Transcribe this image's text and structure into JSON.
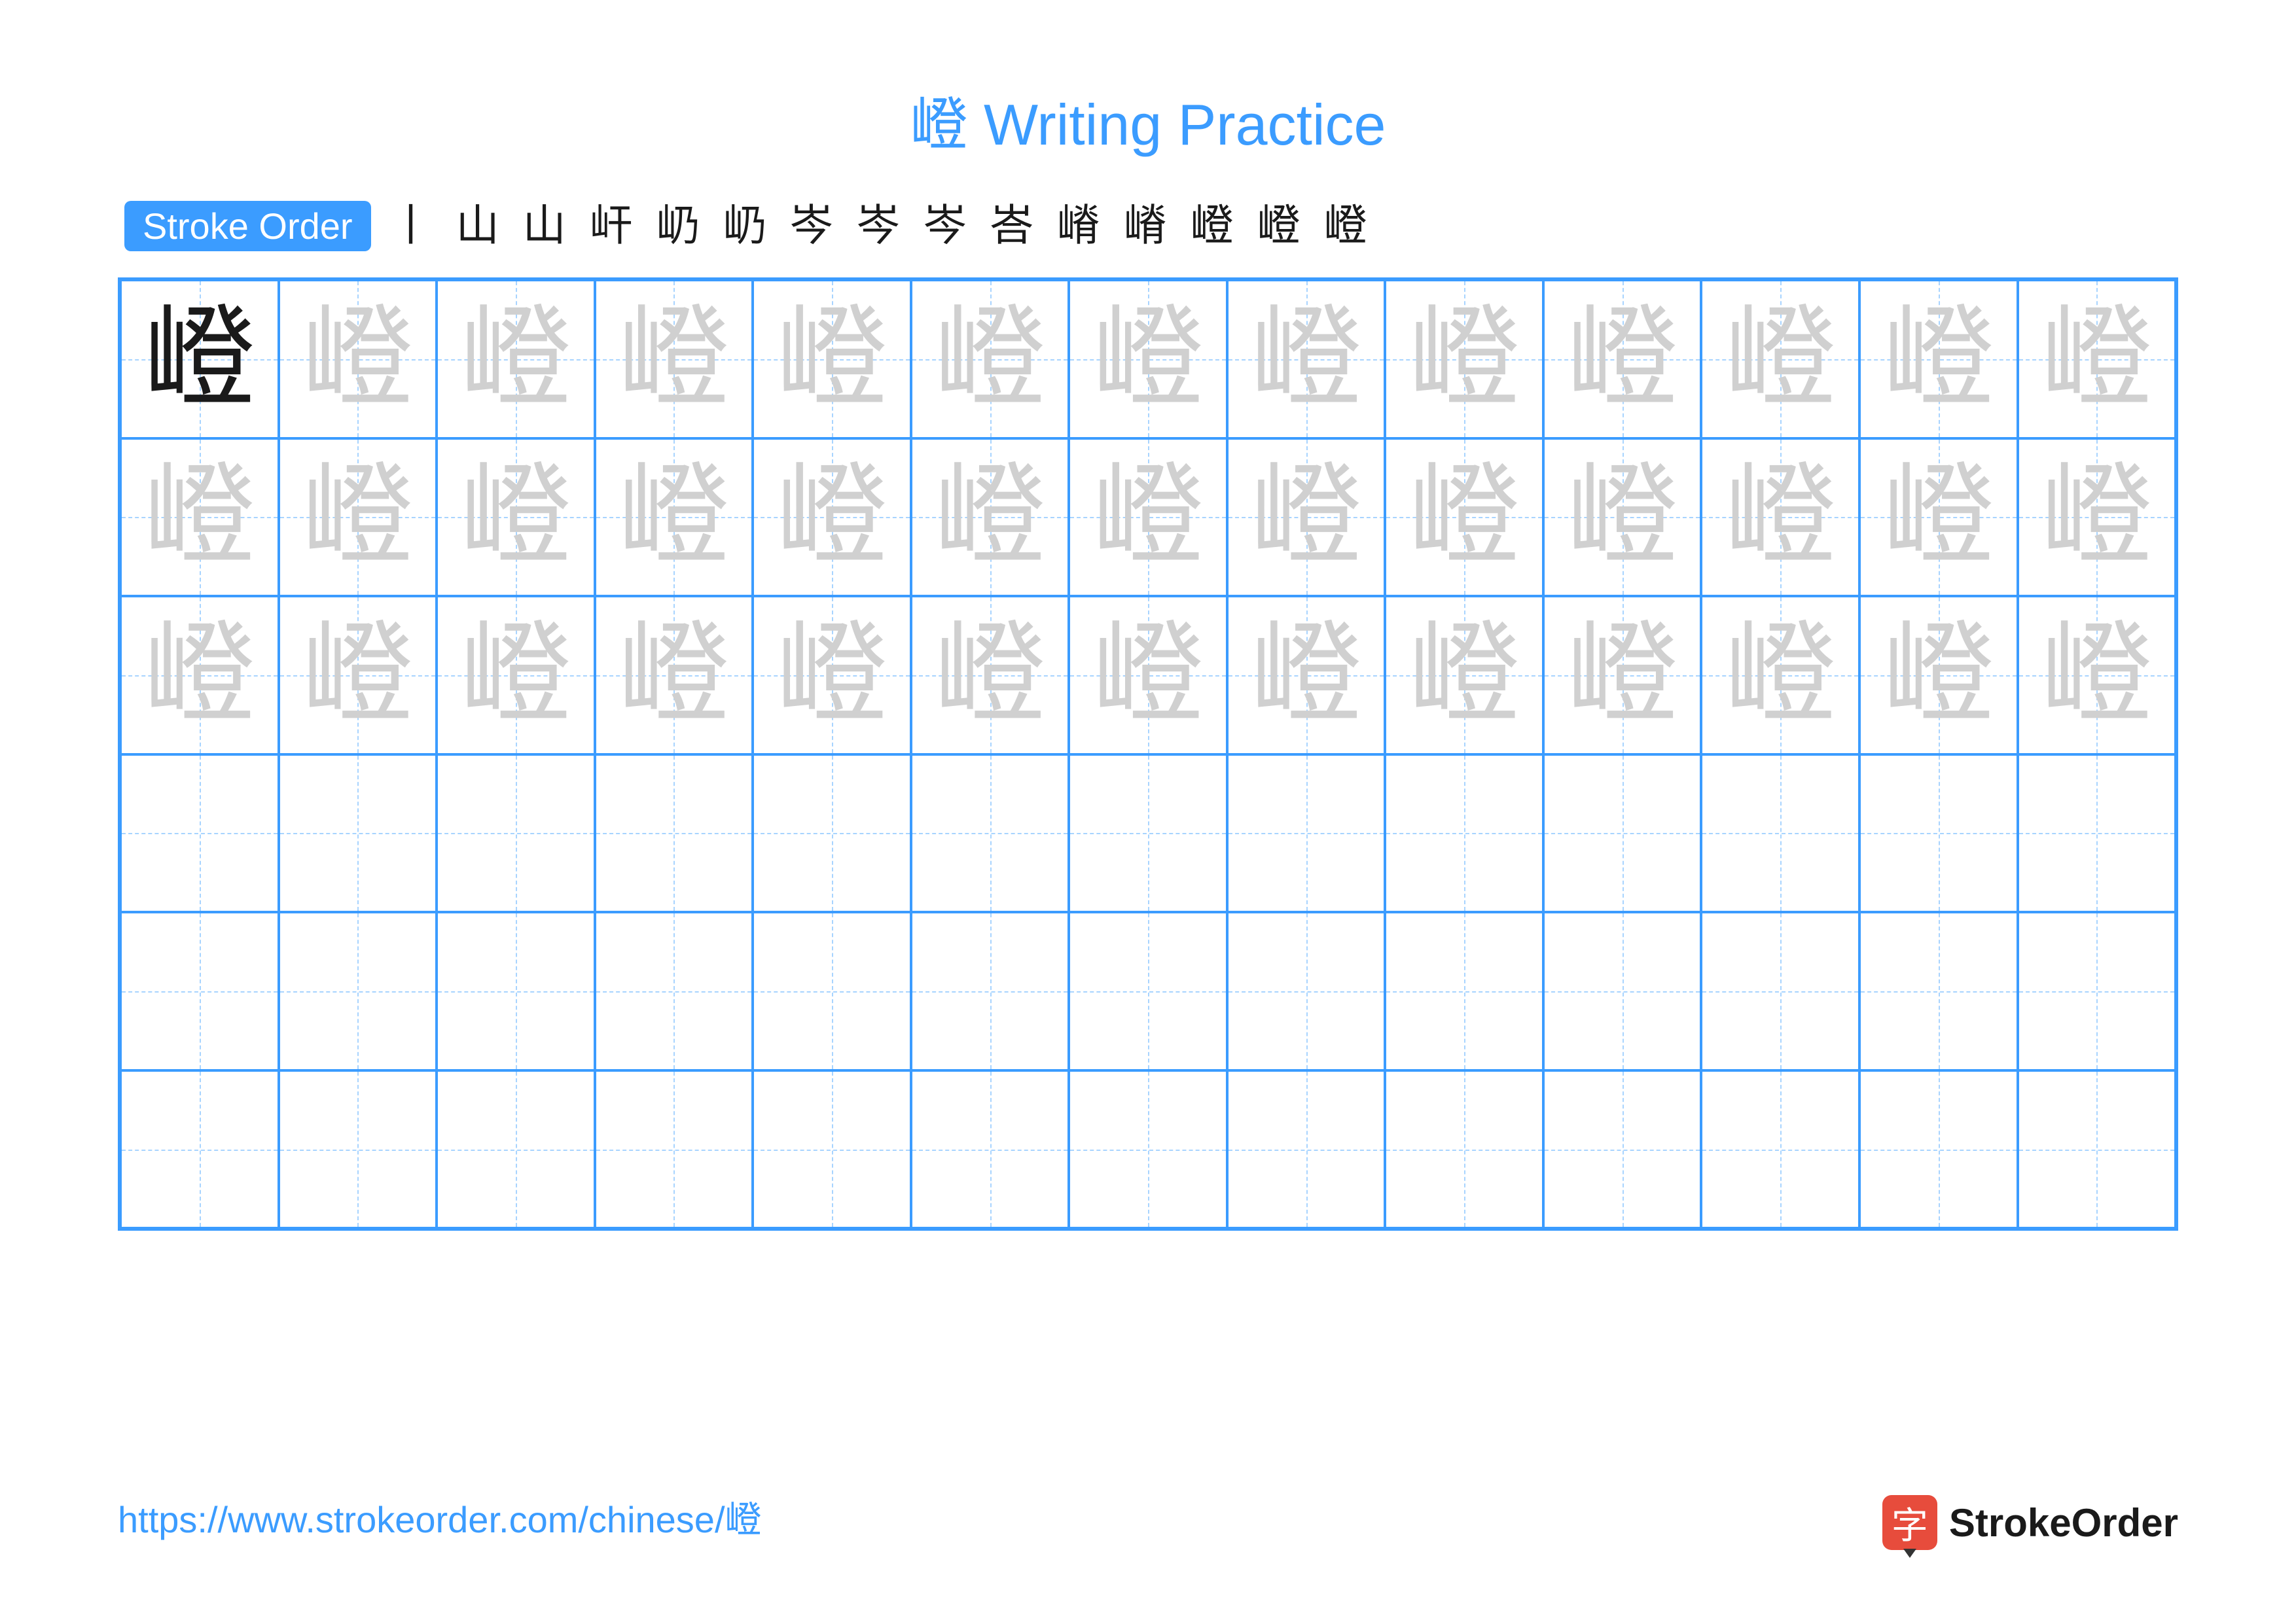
{
  "title": "嶝 Writing Practice",
  "title_color": "#3b9cff",
  "stroke_order": {
    "label": "Stroke Order",
    "badge_bg": "#3b9cff",
    "badge_fg": "#ffffff",
    "steps": [
      "丨",
      "⼭",
      "山",
      "屽",
      "屷",
      "屷",
      "岑",
      "岑",
      "岑",
      "峇",
      "嵴",
      "嵴",
      "嶝",
      "嶝",
      "嶝"
    ]
  },
  "grid": {
    "rows": 6,
    "cols": 13,
    "border_color": "#3b9cff",
    "guide_color": "#a8d4ff",
    "character": "嶝",
    "solid_color": "#1a1a1a",
    "ghost_color": "#d0d0d0",
    "font_family": "KaiTi",
    "char_fontsize": 170,
    "layout": [
      {
        "row": 0,
        "solid": [
          0
        ],
        "ghost": [
          1,
          2,
          3,
          4,
          5,
          6,
          7,
          8,
          9,
          10,
          11,
          12
        ]
      },
      {
        "row": 1,
        "solid": [],
        "ghost": [
          0,
          1,
          2,
          3,
          4,
          5,
          6,
          7,
          8,
          9,
          10,
          11,
          12
        ]
      },
      {
        "row": 2,
        "solid": [],
        "ghost": [
          0,
          1,
          2,
          3,
          4,
          5,
          6,
          7,
          8,
          9,
          10,
          11,
          12
        ]
      },
      {
        "row": 3,
        "solid": [],
        "ghost": []
      },
      {
        "row": 4,
        "solid": [],
        "ghost": []
      },
      {
        "row": 5,
        "solid": [],
        "ghost": []
      }
    ]
  },
  "footer": {
    "url": "https://www.strokeorder.com/chinese/嶝",
    "color": "#3b9cff"
  },
  "logo": {
    "icon_char": "字",
    "icon_bg": "#e74c3c",
    "text": "StrokeOrder",
    "text_color": "#1a1a1a"
  }
}
